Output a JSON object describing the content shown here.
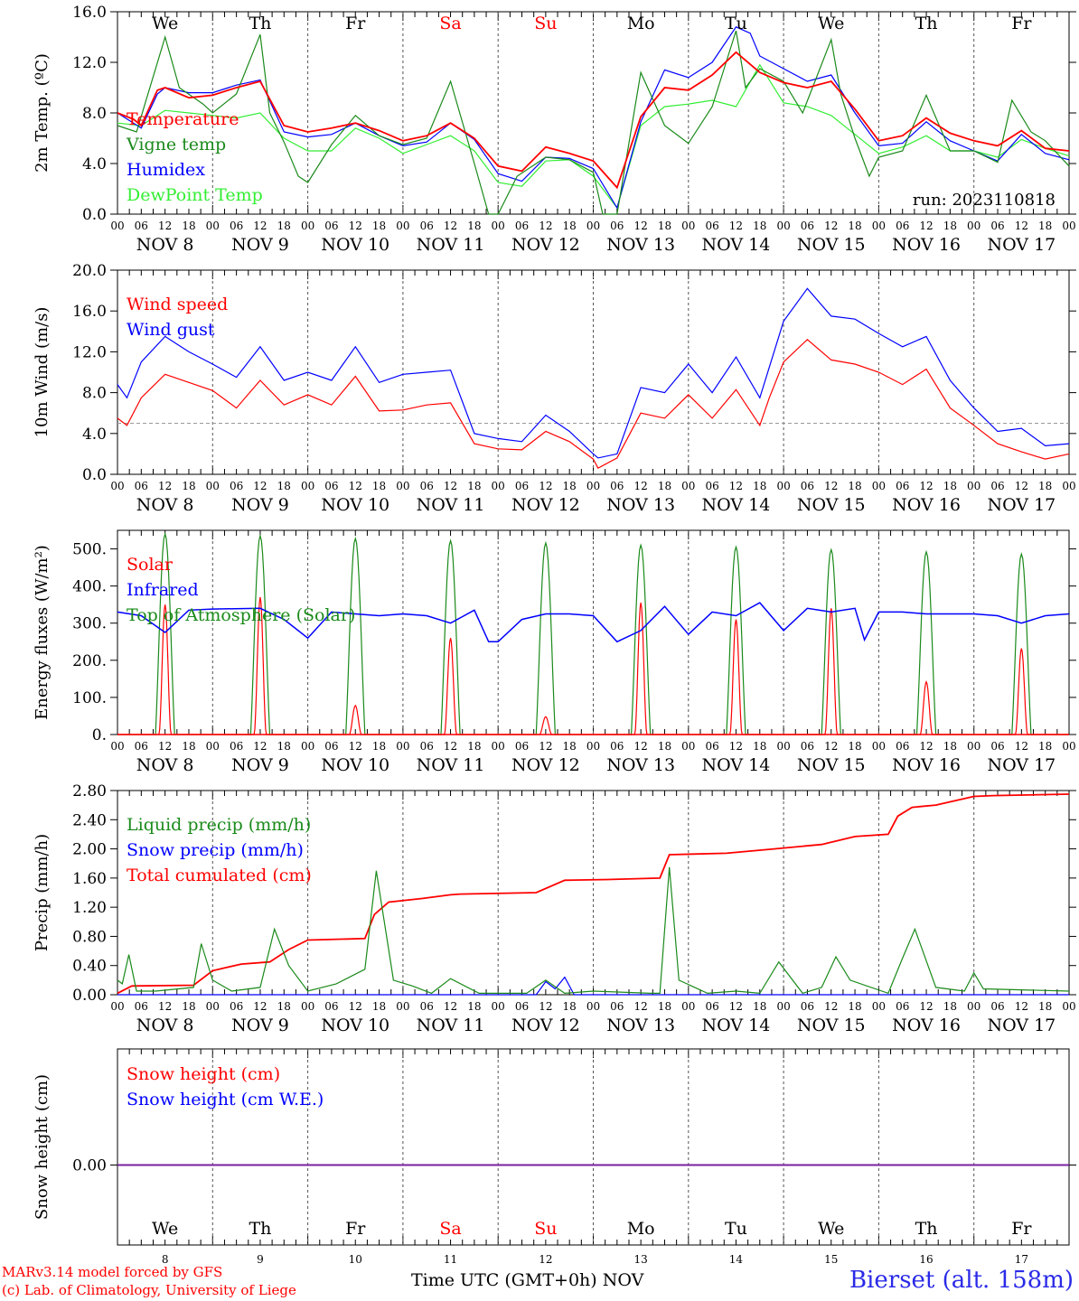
{
  "colors": {
    "red": "#ff0000",
    "green": "#1a8a1a",
    "blue": "#0000ff",
    "lightgreen": "#33ee33",
    "purple": "#7a1fa0",
    "grid": "#888888"
  },
  "footer": {
    "credit_line1": "MARv3.14 model forced by GFS",
    "credit_line2": "(c) Lab. of Climatology, University of Liege",
    "xaxis_title": "Time UTC (GMT+0h)",
    "xaxis_unit": "NOV",
    "station": "Bierset (alt. 158m)"
  },
  "time_axis": {
    "hour_ticks": [
      "00",
      "06",
      "12",
      "18"
    ],
    "final_tick": "00",
    "dates": [
      "NOV 8",
      "NOV 9",
      "NOV 10",
      "NOV 11",
      "NOV 12",
      "NOV 13",
      "NOV 14",
      "NOV 15",
      "NOV 16",
      "NOV 17"
    ],
    "date_numbers": [
      "8",
      "9",
      "10",
      "11",
      "12",
      "13",
      "14",
      "15",
      "16",
      "17"
    ],
    "weekdays": [
      "We",
      "Th",
      "Fr",
      "Sa",
      "Su",
      "Mo",
      "Tu",
      "We",
      "Th",
      "Fr"
    ],
    "weekend_days": [
      3,
      4
    ]
  },
  "chart_data": [
    {
      "type": "line",
      "ylabel": "2m Temp. (ºC)",
      "ylim": [
        0,
        16
      ],
      "yticks": [
        "0.0",
        "4.0",
        "8.0",
        "12.0",
        "16.0"
      ],
      "xlim_days": [
        0,
        10
      ],
      "grid": "vertical dashed at 00 UTC",
      "annotation": "run: 2023110818",
      "series": [
        {
          "name": "Temperature",
          "color": "red",
          "x": [
            0,
            0.17,
            0.25,
            0.42,
            0.5,
            0.75,
            1,
            1.25,
            1.5,
            1.75,
            2,
            2.25,
            2.5,
            2.75,
            3,
            3.25,
            3.5,
            3.75,
            4,
            4.25,
            4.5,
            4.75,
            5,
            5.25,
            5.5,
            5.75,
            6,
            6.25,
            6.5,
            6.75,
            7,
            7.25,
            7.5,
            7.75,
            8,
            8.25,
            8.5,
            8.75,
            9,
            9.25,
            9.5,
            9.75,
            10
          ],
          "y": [
            8,
            7.5,
            7,
            9.8,
            10,
            9.2,
            9.4,
            10,
            10.5,
            7,
            6.5,
            6.8,
            7.2,
            6.6,
            5.8,
            6.2,
            7.2,
            6,
            3.8,
            3.4,
            5.3,
            4.8,
            4.2,
            2.1,
            7.7,
            10,
            9.8,
            11,
            12.8,
            11.2,
            10.4,
            10,
            10.5,
            8.3,
            5.8,
            6.2,
            7.6,
            6.4,
            5.8,
            5.4,
            6.6,
            5.2,
            5
          ]
        },
        {
          "name": "Vigne temp",
          "color": "green",
          "x": [
            0,
            0.2,
            0.5,
            0.65,
            0.9,
            1,
            1.25,
            1.5,
            1.6,
            1.75,
            1.9,
            2,
            2.25,
            2.5,
            2.75,
            3,
            3.25,
            3.5,
            3.75,
            3.9,
            4,
            4.2,
            4.5,
            4.75,
            5,
            5.1,
            5.25,
            5.5,
            5.75,
            6,
            6.25,
            6.5,
            6.6,
            6.75,
            7,
            7.2,
            7.5,
            7.6,
            7.75,
            7.9,
            8,
            8.25,
            8.5,
            8.75,
            9,
            9.25,
            9.4,
            9.6,
            9.75,
            10
          ],
          "y": [
            7,
            6.5,
            14,
            10,
            8.7,
            8,
            9.5,
            14.2,
            8,
            5.7,
            3,
            2.5,
            5.5,
            7.8,
            6.2,
            5.5,
            6,
            10.5,
            4,
            0,
            0,
            3,
            4.5,
            4.3,
            3.3,
            0,
            0,
            11.2,
            7,
            5.6,
            8.5,
            14.5,
            10,
            11.5,
            10.5,
            8,
            13.8,
            9.5,
            6,
            3,
            4.5,
            5,
            9.4,
            5,
            5,
            4.1,
            9,
            6.5,
            5.8,
            3.8
          ]
        },
        {
          "name": "Humidex",
          "color": "blue",
          "x": [
            0,
            0.25,
            0.42,
            0.5,
            0.75,
            1,
            1.25,
            1.5,
            1.75,
            2,
            2.25,
            2.5,
            2.75,
            3,
            3.25,
            3.5,
            3.75,
            4,
            4.25,
            4.5,
            4.75,
            5,
            5.25,
            5.5,
            5.75,
            6,
            6.25,
            6.5,
            6.65,
            6.75,
            7,
            7.25,
            7.5,
            7.75,
            8,
            8.25,
            8.5,
            8.75,
            9,
            9.25,
            9.5,
            9.75,
            10
          ],
          "y": [
            8,
            6.8,
            9.5,
            10,
            9.6,
            9.6,
            10.2,
            10.6,
            6.5,
            6.1,
            6.3,
            7.2,
            6.2,
            5.4,
            5.7,
            7.2,
            5.9,
            3.2,
            2.6,
            4.5,
            4.4,
            3.6,
            0.5,
            7.3,
            11.4,
            10.8,
            12,
            14.8,
            14.3,
            12.5,
            11.5,
            10.5,
            11,
            8,
            5.4,
            5.6,
            7.3,
            5.8,
            5,
            4.2,
            6.3,
            4.8,
            4.3
          ]
        },
        {
          "name": "DewPoint Temp",
          "color": "lightgreen",
          "x": [
            0,
            0.25,
            0.5,
            0.75,
            1,
            1.25,
            1.5,
            1.75,
            2,
            2.25,
            2.5,
            2.75,
            3,
            3.25,
            3.5,
            3.75,
            4,
            4.25,
            4.5,
            4.75,
            5,
            5.25,
            5.5,
            5.75,
            6,
            6.25,
            6.5,
            6.75,
            7,
            7.25,
            7.5,
            7.75,
            8,
            8.25,
            8.5,
            8.75,
            9,
            9.25,
            9.5,
            9.75,
            10
          ],
          "y": [
            7.2,
            7,
            8.2,
            8,
            7.8,
            7.6,
            8,
            6,
            5,
            5,
            6.8,
            6,
            4.8,
            5.5,
            6.2,
            5,
            2.5,
            2.2,
            4.2,
            4.3,
            3,
            0.5,
            7,
            8.5,
            8.7,
            9,
            8.5,
            11.8,
            8.8,
            8.5,
            7.8,
            6.3,
            4.8,
            5.3,
            6.2,
            5,
            5,
            4.5,
            5.9,
            5.2,
            4.6
          ]
        }
      ]
    },
    {
      "type": "line",
      "ylabel": "10m Wind (m/s)",
      "ylim": [
        0,
        20
      ],
      "yticks": [
        "0.0",
        "4.0",
        "8.0",
        "12.0",
        "16.0",
        "20.0"
      ],
      "reference_line": 5,
      "series": [
        {
          "name": "Wind speed",
          "color": "red",
          "x": [
            0,
            0.1,
            0.25,
            0.5,
            0.75,
            1,
            1.25,
            1.5,
            1.75,
            2,
            2.25,
            2.5,
            2.75,
            3,
            3.25,
            3.5,
            3.75,
            4,
            4.25,
            4.5,
            4.75,
            5,
            5.05,
            5.25,
            5.5,
            5.75,
            6,
            6.25,
            6.5,
            6.75,
            6.85,
            7,
            7.25,
            7.5,
            7.75,
            8,
            8.25,
            8.5,
            8.75,
            9,
            9.25,
            9.5,
            9.75,
            10
          ],
          "y": [
            5.5,
            4.8,
            7.5,
            9.8,
            9,
            8.2,
            6.5,
            9.2,
            6.8,
            7.8,
            6.8,
            9.6,
            6.2,
            6.3,
            6.8,
            7,
            3,
            2.5,
            2.4,
            4.2,
            3.2,
            1.5,
            0.6,
            1.6,
            6,
            5.5,
            7.8,
            5.5,
            8.3,
            4.8,
            7.5,
            11,
            13.2,
            11.2,
            10.8,
            10,
            8.8,
            10.3,
            6.5,
            4.8,
            3,
            2.2,
            1.5,
            2
          ]
        },
        {
          "name": "Wind gust",
          "color": "blue",
          "x": [
            0,
            0.1,
            0.25,
            0.5,
            0.75,
            1,
            1.25,
            1.5,
            1.75,
            2,
            2.25,
            2.5,
            2.75,
            3,
            3.25,
            3.5,
            3.75,
            4,
            4.25,
            4.5,
            4.75,
            5,
            5.05,
            5.25,
            5.5,
            5.75,
            6,
            6.25,
            6.5,
            6.75,
            6.85,
            7,
            7.25,
            7.5,
            7.75,
            8,
            8.25,
            8.5,
            8.75,
            9,
            9.25,
            9.5,
            9.75,
            10
          ],
          "y": [
            8.8,
            7.5,
            11,
            13.5,
            12,
            10.8,
            9.5,
            12.5,
            9.2,
            10,
            9.2,
            12.5,
            9,
            9.8,
            10,
            10.2,
            4,
            3.5,
            3.2,
            5.8,
            4.2,
            2,
            1.6,
            2,
            8.5,
            8,
            10.8,
            8,
            11.5,
            7.5,
            10.5,
            15,
            18.2,
            15.5,
            15.2,
            13.8,
            12.5,
            13.5,
            9.2,
            6.5,
            4.2,
            4.5,
            2.8,
            3
          ]
        }
      ]
    },
    {
      "type": "line",
      "ylabel": "Energy fluxes (W/m²)",
      "ylim": [
        0,
        550
      ],
      "yticks": [
        "0.",
        "100.",
        "200.",
        "300.",
        "400.",
        "500."
      ],
      "series": [
        {
          "name": "Solar",
          "color": "red",
          "peaks": [
            {
              "day": 0,
              "max": 350
            },
            {
              "day": 1,
              "max": 370
            },
            {
              "day": 2,
              "max": 78
            },
            {
              "day": 3,
              "max": 260
            },
            {
              "day": 4,
              "max": 48
            },
            {
              "day": 5,
              "max": 355
            },
            {
              "day": 6,
              "max": 310
            },
            {
              "day": 7,
              "max": 340
            },
            {
              "day": 8,
              "max": 142
            },
            {
              "day": 9,
              "max": 232
            }
          ]
        },
        {
          "name": "Infrared",
          "color": "blue",
          "x": [
            0,
            0.25,
            0.5,
            0.75,
            1,
            1.5,
            1.75,
            2,
            2.25,
            2.5,
            2.75,
            3,
            3.25,
            3.5,
            3.75,
            3.9,
            4,
            4.25,
            4.5,
            4.75,
            5,
            5.25,
            5.5,
            5.75,
            6,
            6.25,
            6.5,
            6.75,
            7,
            7.25,
            7.5,
            7.75,
            7.85,
            8,
            8.25,
            8.5,
            8.75,
            9,
            9.25,
            9.5,
            9.75,
            10
          ],
          "y": [
            330,
            320,
            275,
            335,
            338,
            340,
            310,
            260,
            330,
            325,
            320,
            325,
            320,
            300,
            335,
            250,
            250,
            310,
            325,
            325,
            320,
            250,
            280,
            345,
            270,
            330,
            320,
            355,
            280,
            340,
            330,
            340,
            255,
            330,
            330,
            325,
            325,
            325,
            320,
            300,
            320,
            325
          ]
        },
        {
          "name": "Top of Atmosphere (Solar)",
          "color": "green",
          "peaks": [
            {
              "day": 0,
              "max": 540
            },
            {
              "day": 1,
              "max": 535
            },
            {
              "day": 2,
              "max": 528
            },
            {
              "day": 3,
              "max": 522
            },
            {
              "day": 4,
              "max": 516
            },
            {
              "day": 5,
              "max": 510
            },
            {
              "day": 6,
              "max": 505
            },
            {
              "day": 7,
              "max": 498
            },
            {
              "day": 8,
              "max": 492
            },
            {
              "day": 9,
              "max": 486
            }
          ]
        }
      ]
    },
    {
      "type": "line",
      "ylabel": "Precip (mm/h)",
      "ylim": [
        0,
        2.8
      ],
      "yticks": [
        "0.00",
        "0.40",
        "0.80",
        "1.20",
        "1.60",
        "2.00",
        "2.40",
        "2.80"
      ],
      "series": [
        {
          "name": "Liquid precip (mm/h)",
          "color": "green",
          "x": [
            0,
            0.05,
            0.12,
            0.2,
            0.4,
            0.8,
            0.88,
            1,
            1.2,
            1.5,
            1.65,
            1.8,
            2,
            2.3,
            2.6,
            2.72,
            2.9,
            3.1,
            3.3,
            3.5,
            3.8,
            4.3,
            4.5,
            4.7,
            5,
            5.6,
            5.7,
            5.8,
            5.9,
            6.2,
            6.5,
            6.75,
            6.95,
            7.2,
            7.4,
            7.55,
            7.7,
            8.1,
            8.25,
            8.38,
            8.6,
            8.9,
            9,
            9.1,
            10
          ],
          "y": [
            0.2,
            0.15,
            0.55,
            0.05,
            0.05,
            0.1,
            0.7,
            0.2,
            0.05,
            0.1,
            0.9,
            0.4,
            0.05,
            0.15,
            0.35,
            1.7,
            0.2,
            0.12,
            0.02,
            0.22,
            0.02,
            0.02,
            0.2,
            0.02,
            0.05,
            0.02,
            0.02,
            1.75,
            0.2,
            0.02,
            0.05,
            0.02,
            0.45,
            0.02,
            0.1,
            0.52,
            0.2,
            0.02,
            0.5,
            0.9,
            0.1,
            0.05,
            0.3,
            0.08,
            0.05
          ]
        },
        {
          "name": "Snow precip (mm/h)",
          "color": "blue",
          "x": [
            0,
            4.4,
            4.5,
            4.6,
            4.7,
            4.8,
            10
          ],
          "y": [
            0,
            0,
            0.18,
            0.08,
            0.24,
            0,
            0
          ]
        },
        {
          "name": "Total cumulated (cm)",
          "color": "red",
          "x": [
            0,
            0.15,
            0.8,
            1,
            1.3,
            1.6,
            1.8,
            2,
            2.6,
            2.7,
            2.85,
            3.2,
            3.5,
            3.6,
            4.4,
            4.7,
            5.15,
            5.7,
            5.8,
            6.4,
            6.9,
            7.4,
            7.75,
            8.1,
            8.2,
            8.35,
            8.6,
            9,
            9.2,
            10
          ],
          "y": [
            0.02,
            0.12,
            0.13,
            0.33,
            0.42,
            0.45,
            0.62,
            0.75,
            0.77,
            1.1,
            1.27,
            1.32,
            1.37,
            1.38,
            1.4,
            1.57,
            1.58,
            1.6,
            1.92,
            1.94,
            2.0,
            2.06,
            2.17,
            2.2,
            2.45,
            2.57,
            2.6,
            2.72,
            2.73,
            2.75
          ]
        }
      ]
    },
    {
      "type": "line",
      "ylabel": "Snow height (cm)",
      "yticks": [
        "0.00"
      ],
      "series": [
        {
          "name": "Snow height (cm)",
          "color": "red",
          "x": [
            0,
            10
          ],
          "y": [
            0,
            0
          ]
        },
        {
          "name": "Snow height (cm W.E.)",
          "color": "blue",
          "x": [
            0,
            10
          ],
          "y": [
            0,
            0
          ]
        }
      ]
    }
  ]
}
